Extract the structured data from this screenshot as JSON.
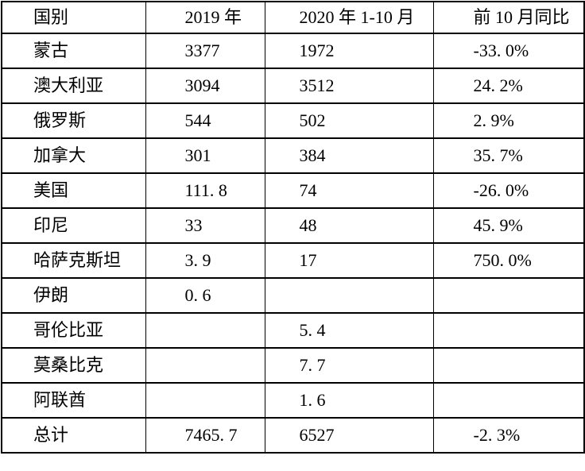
{
  "colors": {
    "background": "#ffffff",
    "border": "#000000",
    "text": "#000000"
  },
  "table": {
    "columns": [
      {
        "key": "country",
        "label": "国别"
      },
      {
        "key": "y2019",
        "label": "2019 年"
      },
      {
        "key": "y2020",
        "label": "2020 年 1-10 月"
      },
      {
        "key": "yoy",
        "label": "前 10 月同比"
      }
    ],
    "rows": [
      {
        "country": "蒙古",
        "y2019": "3377",
        "y2020": "1972",
        "yoy": "-33. 0%"
      },
      {
        "country": "澳大利亚",
        "y2019": "3094",
        "y2020": "3512",
        "yoy": "24. 2%"
      },
      {
        "country": "俄罗斯",
        "y2019": "544",
        "y2020": "502",
        "yoy": "2. 9%"
      },
      {
        "country": "加拿大",
        "y2019": "301",
        "y2020": "384",
        "yoy": "35. 7%"
      },
      {
        "country": "美国",
        "y2019": "111. 8",
        "y2020": "74",
        "yoy": "-26. 0%"
      },
      {
        "country": "印尼",
        "y2019": "33",
        "y2020": "48",
        "yoy": "45. 9%"
      },
      {
        "country": "哈萨克斯坦",
        "y2019": "3. 9",
        "y2020": "17",
        "yoy": "750. 0%"
      },
      {
        "country": "伊朗",
        "y2019": "0. 6",
        "y2020": "",
        "yoy": ""
      },
      {
        "country": "哥伦比亚",
        "y2019": "",
        "y2020": "5. 4",
        "yoy": ""
      },
      {
        "country": "莫桑比克",
        "y2019": "",
        "y2020": "7. 7",
        "yoy": ""
      },
      {
        "country": "阿联酋",
        "y2019": "",
        "y2020": "1. 6",
        "yoy": ""
      },
      {
        "country": "总计",
        "y2019": "7465. 7",
        "y2020": "6527",
        "yoy": "-2. 3%"
      }
    ]
  }
}
